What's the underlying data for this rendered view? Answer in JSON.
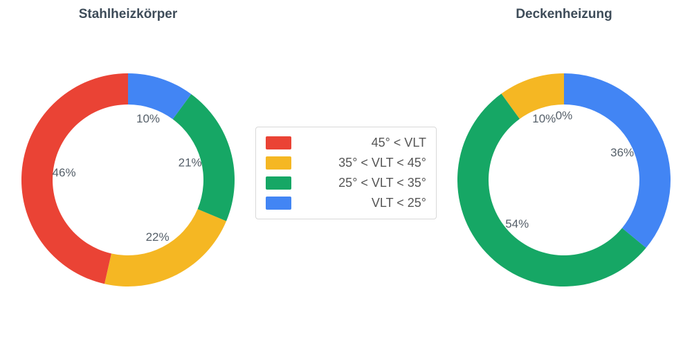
{
  "page": {
    "background": "#ffffff"
  },
  "palette": {
    "red": "#EA4335",
    "yellow": "#F5B723",
    "green": "#16A765",
    "blue": "#4285F4",
    "title_color": "#3e4c59",
    "label_color": "#555f69",
    "legend_text_color": "#555555",
    "legend_border_color": "#d8d8d8"
  },
  "legend": {
    "position": "center",
    "items": [
      {
        "label": "45° < VLT",
        "color": "#EA4335"
      },
      {
        "label": "35° < VLT < 45°",
        "color": "#F5B723"
      },
      {
        "label": "25° < VLT < 35°",
        "color": "#16A765"
      },
      {
        "label": "VLT < 25°",
        "color": "#4285F4"
      }
    ]
  },
  "chart_data": [
    {
      "type": "pie",
      "title": "Stahlheizkörper",
      "hole": 0.71,
      "start_angle": 90,
      "direction": "counterclockwise",
      "legend_position": "center-between-charts",
      "categories": [
        "45° < VLT",
        "35° < VLT < 45°",
        "25° < VLT < 35°",
        "VLT < 25°"
      ],
      "values": [
        46,
        22,
        21,
        10
      ],
      "data_labels": [
        "46%",
        "22%",
        "21%",
        "10%"
      ],
      "colors": [
        "#EA4335",
        "#F5B723",
        "#16A765",
        "#4285F4"
      ]
    },
    {
      "type": "pie",
      "title": "Deckenheizung",
      "hole": 0.71,
      "start_angle": 90,
      "direction": "counterclockwise",
      "legend_position": "center-between-charts",
      "categories": [
        "45° < VLT",
        "35° < VLT < 45°",
        "25° < VLT < 35°",
        "VLT < 25°"
      ],
      "values": [
        0,
        10,
        54,
        36
      ],
      "data_labels": [
        "0%",
        "10%",
        "54%",
        "36%"
      ],
      "colors": [
        "#EA4335",
        "#F5B723",
        "#16A765",
        "#4285F4"
      ]
    }
  ]
}
